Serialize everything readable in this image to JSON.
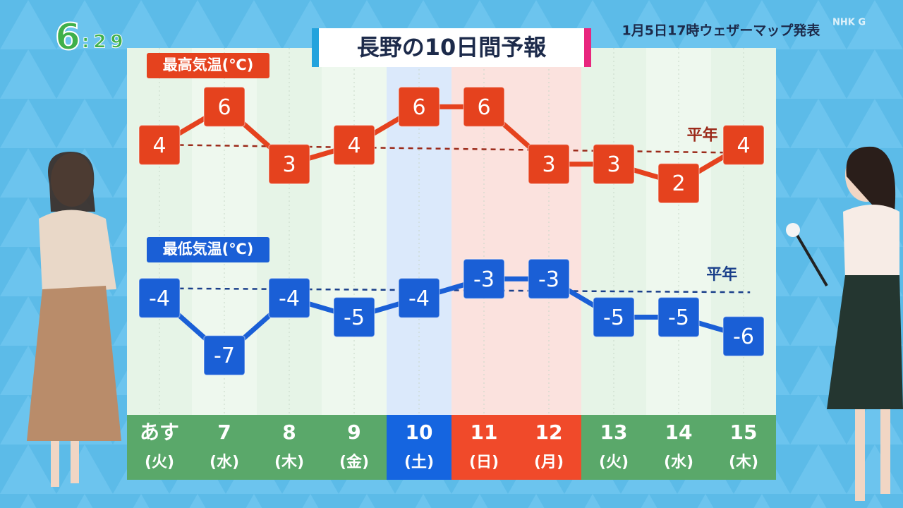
{
  "clock_hour": "6",
  "clock_minutes": ":29",
  "brand": "NHK G",
  "issued": "1月5日17時ウェザーマップ発表",
  "chart_data": {
    "type": "line",
    "title": "長野の10日間予報",
    "categories": [
      "あす",
      "7",
      "8",
      "9",
      "10",
      "11",
      "12",
      "13",
      "14",
      "15"
    ],
    "weekdays": [
      "(火)",
      "(水)",
      "(木)",
      "(金)",
      "(土)",
      "(日)",
      "(月)",
      "(火)",
      "(水)",
      "(木)"
    ],
    "category_colors": [
      "#5aa86a",
      "#5aa86a",
      "#5aa86a",
      "#5aa86a",
      "#1565e0",
      "#f04a2a",
      "#f04a2a",
      "#5aa86a",
      "#5aa86a",
      "#5aa86a"
    ],
    "column_colors": [
      "#e6f4e4",
      "#eef8ec",
      "#e6f4e4",
      "#eef8ec",
      "#d9e8fb",
      "#fde0da",
      "#fde0da",
      "#e6f4e4",
      "#eef8ec",
      "#e6f4e4"
    ],
    "ylim": [
      -10,
      9
    ],
    "series": [
      {
        "name": "最高気温(℃)",
        "color": "#e5421e",
        "values": [
          4,
          6,
          3,
          4,
          6,
          6,
          3,
          3,
          2,
          4
        ],
        "normal": {
          "label": "平年",
          "start": 4.0,
          "end": 3.6,
          "color": "#9b2a1a"
        }
      },
      {
        "name": "最低気温(℃)",
        "color": "#1a5fd6",
        "values": [
          -4,
          -7,
          -4,
          -5,
          -4,
          -3,
          -3,
          -5,
          -5,
          -6
        ],
        "normal": {
          "label": "平年",
          "start": -3.5,
          "end": -3.7,
          "color": "#1a3f8a"
        }
      }
    ]
  }
}
